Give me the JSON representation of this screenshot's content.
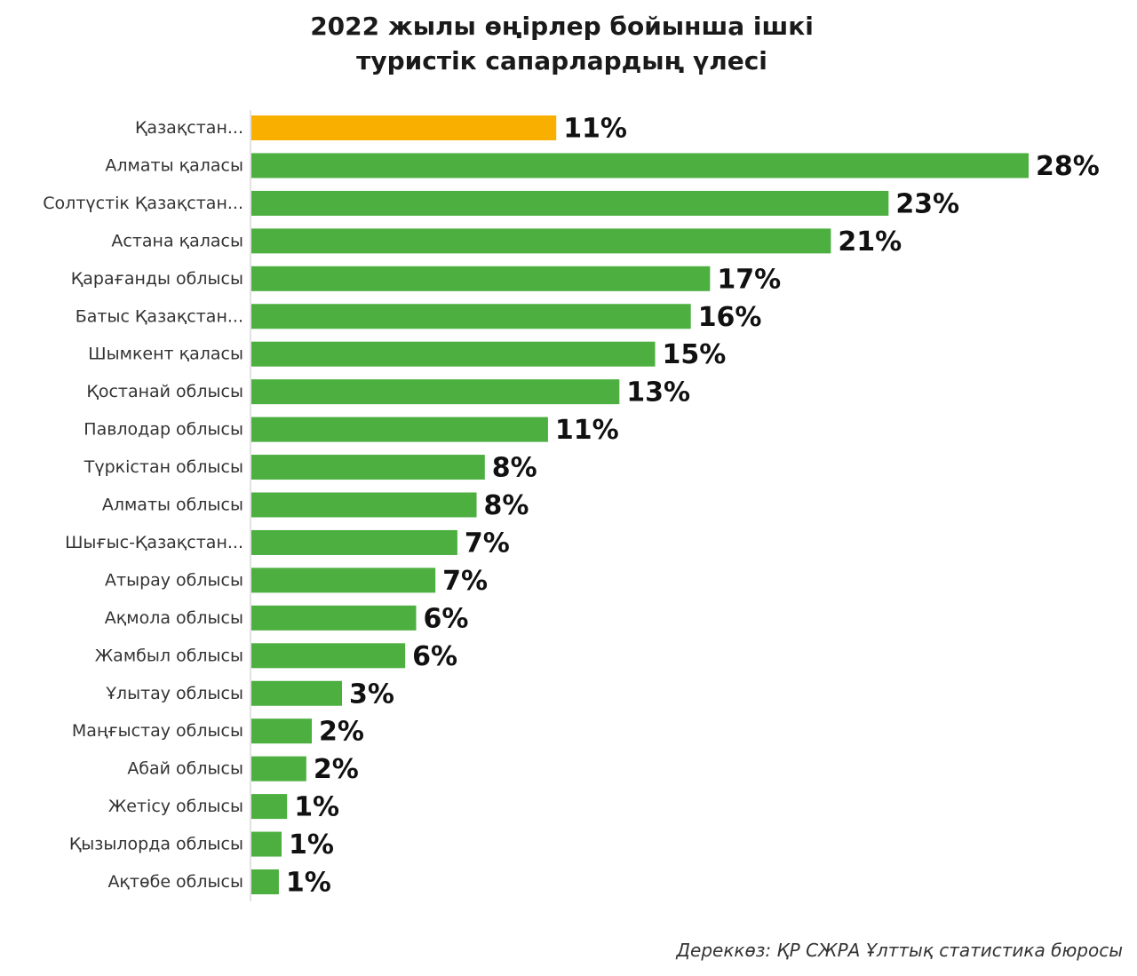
{
  "chart_data": {
    "type": "bar",
    "orientation": "horizontal",
    "title_line1": "2022 жылы өңірлер бойынша ішкі",
    "title_line2": "туристік сапарлардың үлесі",
    "categories": [
      "Қазақстан...",
      "Алматы қаласы",
      "Солтүстік Қазақстан...",
      "Астана  қаласы",
      "Қарағанды облысы",
      "Батыс Қазақстан...",
      "Шымкент қаласы",
      "Қостанай облысы",
      "Павлодар облысы",
      "Түркістан облысы",
      "Алматы облысы",
      "Шығыс-Қазақстан...",
      "Атырау облысы",
      "Ақмола облысы",
      "Жамбыл облысы",
      "Ұлытау облысы",
      "Маңғыстау облысы",
      "Абай облысы",
      "Жетісу облысы",
      "Қызылорда облысы",
      "Ақтөбе облысы"
    ],
    "values": [
      11.1,
      28.3,
      23.2,
      21.1,
      16.7,
      16.0,
      14.7,
      13.4,
      10.8,
      8.5,
      8.2,
      7.5,
      6.7,
      6.0,
      5.6,
      3.3,
      2.2,
      2.0,
      1.3,
      1.1,
      1.0
    ],
    "value_labels": [
      "11%",
      "28%",
      "23%",
      "21%",
      "17%",
      "16%",
      "15%",
      "13%",
      "11%",
      "8%",
      "8%",
      "7%",
      "7%",
      "6%",
      "6%",
      "3%",
      "2%",
      "2%",
      "1%",
      "1%",
      "1%"
    ],
    "highlight_index": 0,
    "highlight_color": "#F9AF00",
    "bar_color": "#4CAF40",
    "axis_color": "#d9d9d9",
    "xlim": [
      0,
      28.3
    ],
    "grid": false,
    "legend": "none",
    "source": "Дереккөз: ҚР СЖРА Ұлттық статистика бюросы"
  }
}
